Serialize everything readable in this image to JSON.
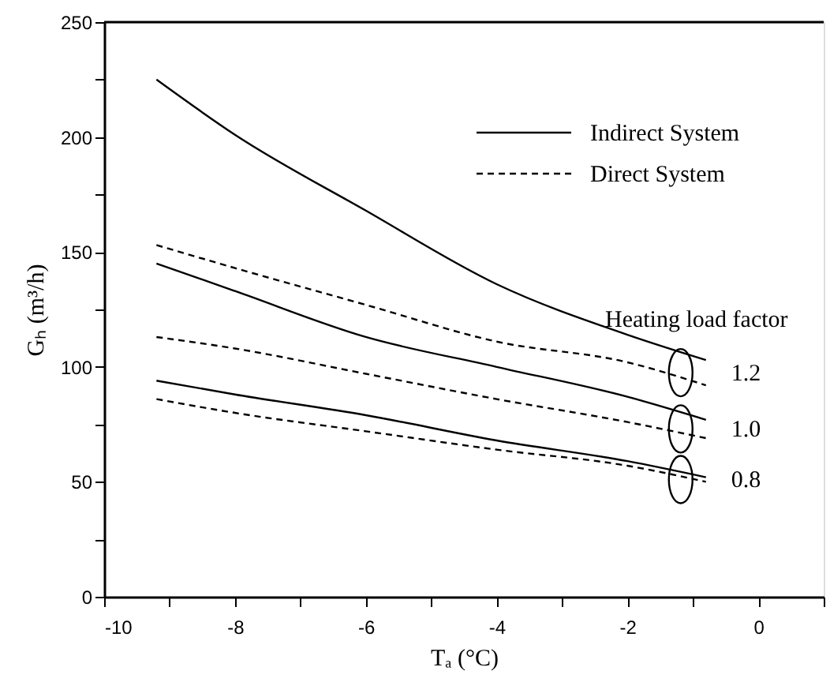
{
  "chart_data": {
    "type": "line",
    "xlabel": "Tₐ    (°C)",
    "ylabel": "Gₕ (m³/h)",
    "xlim": [
      -10,
      1
    ],
    "ylim": [
      0,
      250
    ],
    "xticks": [
      -10,
      {
        "value": -9,
        "label": null
      },
      -8,
      {
        "value": -7,
        "label": null
      },
      -6,
      {
        "value": -5,
        "label": null
      },
      -4,
      {
        "value": -3,
        "label": null
      },
      -2,
      {
        "value": -1,
        "label": null
      },
      0,
      {
        "value": 1,
        "label": null
      }
    ],
    "yticks": [
      0,
      {
        "value": 25,
        "label": null
      },
      50,
      {
        "value": 75,
        "label": null
      },
      100,
      {
        "value": 125,
        "label": null
      },
      150,
      {
        "value": 175,
        "label": null
      },
      200,
      {
        "value": 225,
        "label": null
      },
      250
    ],
    "x": [
      -9.2,
      -8,
      -6,
      -4,
      -2,
      -0.8
    ],
    "grid": false,
    "legend": "top right",
    "marker": "none",
    "series": [
      {
        "name": "Indirect System",
        "color": "#000000",
        "line_style": "solid",
        "values": [
          225,
          201,
          168,
          136,
          114,
          103
        ]
      },
      {
        "name": "Direct System",
        "color": "#000000",
        "line_style": "dashed",
        "values": [
          153,
          143,
          127,
          111,
          102,
          92
        ]
      },
      {
        "color": "#000000",
        "line_style": "solid",
        "values": [
          145,
          133,
          113,
          100,
          87,
          77
        ]
      },
      {
        "color": "#000000",
        "line_style": "dashed",
        "values": [
          113,
          108,
          97,
          86,
          76,
          69
        ]
      },
      {
        "color": "#000000",
        "line_style": "solid",
        "values": [
          94,
          88,
          79,
          68,
          59,
          52
        ]
      },
      {
        "color": "#000000",
        "line_style": "dashed",
        "values": [
          86,
          80,
          72,
          64,
          57,
          50
        ]
      }
    ],
    "annotations": [
      "Heating load factor",
      "1.2",
      "1.0",
      "0.8"
    ]
  }
}
